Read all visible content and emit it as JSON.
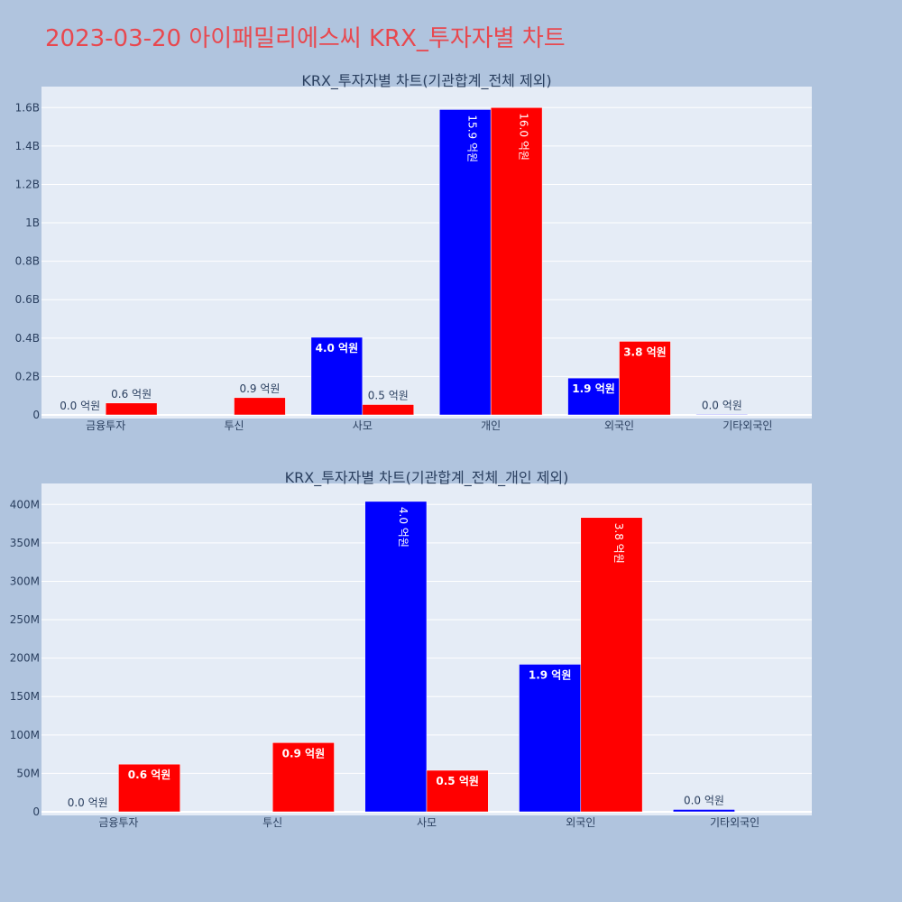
{
  "title": "2023-03-20 아이패밀리에스씨 KRX_투자자별 차트",
  "colors": {
    "page_bg": "#b0c4de",
    "plot_bg": "#e5ecf6",
    "grid": "#ffffff",
    "title": "#e8484f",
    "text": "#2a3f5f",
    "series_a": "#0000ff",
    "series_b": "#ff0000"
  },
  "chart_data": [
    {
      "type": "bar",
      "title": "KRX_투자자별 차트(기관합계_전체 제외)",
      "categories": [
        "금융투자",
        "투신",
        "사모",
        "개인",
        "외국인",
        "기타외국인"
      ],
      "series": [
        {
          "color": "#0000ff",
          "values": [
            0,
            null,
            404000000,
            1590000000,
            192000000,
            3000000
          ],
          "labels": [
            "0.0 억원",
            "",
            "4.0 억원",
            "15.9 억원",
            "1.9 억원",
            "0.0 억원"
          ]
        },
        {
          "color": "#ff0000",
          "values": [
            62000000,
            90000000,
            54000000,
            1600000000,
            383000000,
            null
          ],
          "labels": [
            "0.6 억원",
            "0.9 억원",
            "0.5 억원",
            "16.0 억원",
            "3.8 억원",
            ""
          ]
        }
      ],
      "ylim": [
        0,
        1700000000
      ],
      "yticks": [
        0,
        200000000,
        400000000,
        600000000,
        800000000,
        1000000000,
        1200000000,
        1400000000,
        1600000000
      ],
      "ytick_labels": [
        "0",
        "0.2B",
        "0.4B",
        "0.6B",
        "0.8B",
        "1B",
        "1.2B",
        "1.4B",
        "1.6B"
      ],
      "grid": true
    },
    {
      "type": "bar",
      "title": "KRX_투자자별 차트(기관합계_전체_개인 제외)",
      "categories": [
        "금융투자",
        "투신",
        "사모",
        "외국인",
        "기타외국인"
      ],
      "series": [
        {
          "color": "#0000ff",
          "values": [
            0,
            null,
            404000000,
            192000000,
            3000000
          ],
          "labels": [
            "0.0 억원",
            "",
            "4.0 억원",
            "1.9 억원",
            "0.0 억원"
          ]
        },
        {
          "color": "#ff0000",
          "values": [
            62000000,
            90000000,
            54000000,
            383000000,
            null
          ],
          "labels": [
            "0.6 억원",
            "0.9 억원",
            "0.5 억원",
            "3.8 억원",
            ""
          ]
        }
      ],
      "ylim": [
        0,
        425000000
      ],
      "yticks": [
        0,
        50000000,
        100000000,
        150000000,
        200000000,
        250000000,
        300000000,
        350000000,
        400000000
      ],
      "ytick_labels": [
        "0",
        "50M",
        "100M",
        "150M",
        "200M",
        "250M",
        "300M",
        "350M",
        "400M"
      ],
      "grid": true
    }
  ]
}
